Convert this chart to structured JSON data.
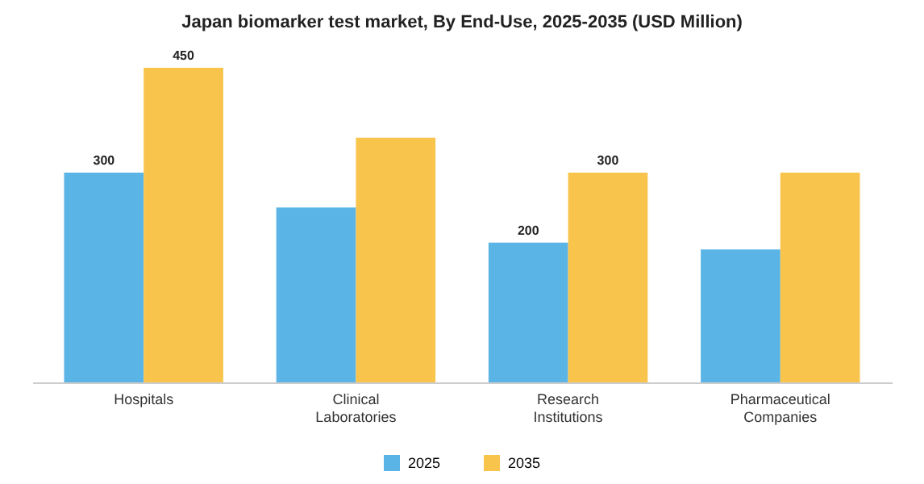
{
  "chart_data": {
    "type": "bar",
    "title": "Japan biomarker test market, By End-Use, 2025-2035 (USD Million)",
    "categories": [
      "Hospitals",
      "Clinical Laboratories",
      "Research Institutions",
      "Pharmaceutical Companies"
    ],
    "series": [
      {
        "name": "2025",
        "color": "#5ab4e5",
        "values": [
          300,
          250,
          200,
          190
        ],
        "value_labels": [
          "300",
          null,
          "200",
          null
        ]
      },
      {
        "name": "2035",
        "color": "#f8c44c",
        "values": [
          450,
          350,
          300,
          300
        ],
        "value_labels": [
          "450",
          null,
          "300",
          null
        ]
      }
    ],
    "legend": "bottom",
    "grid": false
  }
}
